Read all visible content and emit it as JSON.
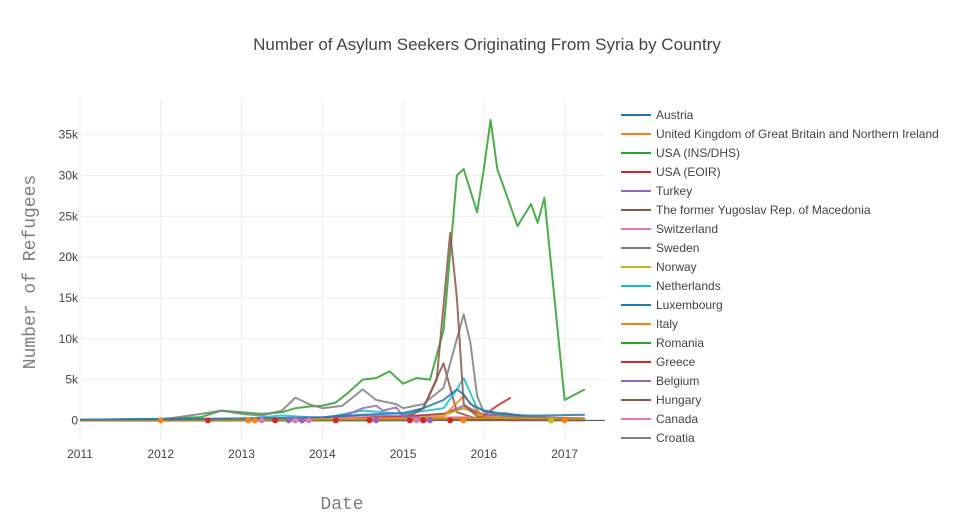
{
  "chart_data": {
    "type": "line",
    "title": "Number of Asylum Seekers Originating From Syria by Country",
    "xlabel": "Date",
    "ylabel": "Number of Refugees",
    "x_ticks": [
      "2011",
      "2012",
      "2013",
      "2014",
      "2015",
      "2016",
      "2017"
    ],
    "y_ticks": [
      {
        "value": 0,
        "label": "0"
      },
      {
        "value": 5000,
        "label": "5k"
      },
      {
        "value": 10000,
        "label": "10k"
      },
      {
        "value": 15000,
        "label": "15k"
      },
      {
        "value": 20000,
        "label": "20k"
      },
      {
        "value": 25000,
        "label": "25k"
      },
      {
        "value": 30000,
        "label": "30k"
      },
      {
        "value": 35000,
        "label": "35k"
      }
    ],
    "xlim": [
      "2011-01-01",
      "2017-07-01"
    ],
    "ylim": [
      -2400,
      39500
    ],
    "grid": true,
    "legend_position": "right",
    "series": [
      {
        "name": "Austria",
        "color": "#1f77b4",
        "x": [
          "2011-01",
          "2011-07",
          "2012-01",
          "2012-07",
          "2013-01",
          "2013-07",
          "2014-01",
          "2014-07",
          "2015-01",
          "2015-04",
          "2015-07",
          "2015-09",
          "2015-10",
          "2015-11",
          "2016-01",
          "2016-04",
          "2016-07",
          "2016-10",
          "2017-01",
          "2017-04"
        ],
        "y": [
          100,
          120,
          150,
          200,
          250,
          300,
          400,
          700,
          900,
          1500,
          2500,
          3800,
          3200,
          2000,
          1200,
          800,
          600,
          600,
          650,
          700
        ]
      },
      {
        "name": "United Kingdom of Great Britain and Northern Ireland",
        "color": "#ff7f0e",
        "x": [
          "2011-01",
          "2012-01",
          "2013-01",
          "2014-01",
          "2015-01",
          "2015-07",
          "2016-01",
          "2016-07",
          "2017-01",
          "2017-04"
        ],
        "y": [
          20,
          60,
          100,
          150,
          200,
          250,
          280,
          250,
          220,
          200
        ]
      },
      {
        "name": "USA (INS/DHS)",
        "color": "#2ca02c",
        "x": [
          "2011-01",
          "2012-01",
          "2013-01",
          "2014-01",
          "2015-01",
          "2016-01",
          "2017-01",
          "2017-04"
        ],
        "y": [
          10,
          20,
          30,
          50,
          100,
          200,
          150,
          120
        ]
      },
      {
        "name": "USA (EOIR)",
        "color": "#d62728",
        "x": [
          "2011-01",
          "2012-01",
          "2013-01",
          "2014-01",
          "2015-01",
          "2016-01",
          "2017-01",
          "2017-04"
        ],
        "y": [
          5,
          10,
          20,
          30,
          60,
          100,
          80,
          70
        ]
      },
      {
        "name": "Turkey",
        "color": "#9467bd",
        "x": [
          "2014-01",
          "2014-05",
          "2014-07",
          "2014-09",
          "2014-10",
          "2014-12",
          "2015-01",
          "2015-04",
          "2015-07",
          "2015-10",
          "2016-01",
          "2016-07",
          "2017-01",
          "2017-04"
        ],
        "y": [
          200,
          800,
          1500,
          1800,
          1200,
          1600,
          500,
          300,
          200,
          300,
          250,
          200,
          200,
          150
        ]
      },
      {
        "name": "The former Yugoslav Rep. of Macedonia",
        "color": "#8c564b",
        "x": [
          "2015-01",
          "2015-04",
          "2015-06",
          "2015-08",
          "2015-09",
          "2015-10",
          "2015-12",
          "2016-03",
          "2016-06"
        ],
        "y": [
          100,
          1500,
          5000,
          23000,
          15000,
          2000,
          500,
          100,
          0
        ]
      },
      {
        "name": "Switzerland",
        "color": "#e377c2",
        "x": [
          "2011-01",
          "2012-01",
          "2013-01",
          "2014-01",
          "2015-01",
          "2015-10",
          "2016-01",
          "2016-07",
          "2017-01",
          "2017-04"
        ],
        "y": [
          50,
          70,
          100,
          200,
          250,
          400,
          300,
          200,
          150,
          120
        ]
      },
      {
        "name": "Sweden",
        "color": "#7f7f7f",
        "x": [
          "2011-01",
          "2012-01",
          "2012-07",
          "2012-10",
          "2013-01",
          "2013-04",
          "2013-07",
          "2013-09",
          "2013-11",
          "2014-01",
          "2014-04",
          "2014-07",
          "2014-09",
          "2014-12",
          "2015-01",
          "2015-04",
          "2015-07",
          "2015-09",
          "2015-10",
          "2015-11",
          "2015-12",
          "2016-01",
          "2016-04",
          "2016-07",
          "2017-01",
          "2017-04"
        ],
        "y": [
          50,
          100,
          800,
          1200,
          800,
          600,
          1200,
          2800,
          2000,
          1500,
          1800,
          3800,
          2500,
          2000,
          1500,
          2000,
          4000,
          10000,
          13000,
          9500,
          3000,
          1000,
          600,
          400,
          300,
          250
        ]
      },
      {
        "name": "Norway",
        "color": "#bcbd22",
        "x": [
          "2011-01",
          "2012-01",
          "2013-01",
          "2014-01",
          "2015-01",
          "2015-07",
          "2015-10",
          "2016-01",
          "2016-07",
          "2017-01",
          "2017-04"
        ],
        "y": [
          30,
          50,
          80,
          150,
          250,
          600,
          1500,
          400,
          200,
          150,
          120
        ]
      },
      {
        "name": "Netherlands",
        "color": "#17becf",
        "x": [
          "2011-01",
          "2012-01",
          "2013-01",
          "2013-07",
          "2014-01",
          "2014-07",
          "2015-01",
          "2015-07",
          "2015-09",
          "2015-10",
          "2015-12",
          "2016-04",
          "2016-07",
          "2017-01",
          "2017-04"
        ],
        "y": [
          50,
          80,
          150,
          600,
          300,
          1200,
          800,
          1500,
          3800,
          5200,
          1500,
          500,
          300,
          250,
          200
        ]
      },
      {
        "name": "Luxembourg",
        "color": "#1f77b4",
        "x": [
          "2011-01",
          "2013-01",
          "2015-01",
          "2015-10",
          "2016-04",
          "2017-01",
          "2017-04"
        ],
        "y": [
          5,
          10,
          20,
          80,
          50,
          30,
          25
        ]
      },
      {
        "name": "Italy",
        "color": "#ff7f0e",
        "x": [
          "2011-01",
          "2011-07",
          "2012-01",
          "2012-07",
          "2013-01",
          "2013-04",
          "2014-01",
          "2015-01",
          "2015-07",
          "2015-10",
          "2016-01",
          "2016-07",
          "2017-01",
          "2017-04"
        ],
        "y": [
          30,
          50,
          100,
          150,
          150,
          200,
          200,
          300,
          500,
          3000,
          400,
          300,
          200,
          150
        ]
      },
      {
        "name": "Romania",
        "color": "#2ca02c",
        "x": [
          "2011-01",
          "2011-07",
          "2012-01",
          "2012-07",
          "2012-10",
          "2013-01",
          "2013-04",
          "2013-07",
          "2013-09",
          "2013-11",
          "2014-01",
          "2014-03",
          "2014-05",
          "2014-07",
          "2014-09",
          "2014-11",
          "2015-01",
          "2015-03",
          "2015-05",
          "2015-07",
          "2015-09",
          "2015-10",
          "2015-12",
          "2016-01",
          "2016-02",
          "2016-03",
          "2016-04",
          "2016-06",
          "2016-08",
          "2016-09",
          "2016-10",
          "2017-01",
          "2017-04"
        ],
        "y": [
          50,
          150,
          200,
          400,
          1200,
          1000,
          800,
          1000,
          1500,
          1700,
          1800,
          2200,
          3500,
          5000,
          5200,
          6000,
          4500,
          5200,
          5000,
          11000,
          30000,
          30800,
          25500,
          30800,
          36800,
          30800,
          28500,
          23800,
          26500,
          24200,
          27300,
          2500,
          3800
        ]
      },
      {
        "name": "Greece",
        "color": "#d62728",
        "x": [
          "2011-01",
          "2012-01",
          "2013-01",
          "2014-01",
          "2014-07",
          "2015-01",
          "2015-07",
          "2015-10",
          "2016-01",
          "2016-03",
          "2016-05"
        ],
        "y": [
          20,
          50,
          80,
          150,
          300,
          400,
          800,
          1500,
          600,
          1800,
          2800
        ]
      },
      {
        "name": "Belgium",
        "color": "#9467bd",
        "x": [
          "2011-01",
          "2012-01",
          "2013-01",
          "2014-01",
          "2014-07",
          "2015-01",
          "2015-07",
          "2015-10",
          "2016-01",
          "2016-07",
          "2017-01",
          "2017-04"
        ],
        "y": [
          40,
          80,
          150,
          300,
          600,
          500,
          800,
          1800,
          700,
          400,
          300,
          250
        ]
      },
      {
        "name": "Hungary",
        "color": "#8c564b",
        "x": [
          "2011-01",
          "2012-01",
          "2013-01",
          "2014-01",
          "2014-07",
          "2015-01",
          "2015-04",
          "2015-07",
          "2015-09",
          "2015-12",
          "2016-04",
          "2016-07",
          "2017-01",
          "2017-04"
        ],
        "y": [
          10,
          30,
          60,
          100,
          300,
          500,
          1500,
          7000,
          1000,
          200,
          900,
          500,
          100,
          50
        ]
      },
      {
        "name": "Canada",
        "color": "#e377c2",
        "x": [
          "2011-01",
          "2012-01",
          "2013-01",
          "2014-01",
          "2015-01",
          "2016-01",
          "2017-01",
          "2017-04"
        ],
        "y": [
          20,
          40,
          60,
          100,
          150,
          300,
          200,
          150
        ]
      },
      {
        "name": "Croatia",
        "color": "#7f7f7f",
        "x": [
          "2011-01",
          "2013-01",
          "2015-01",
          "2015-09",
          "2015-11",
          "2016-01",
          "2016-07",
          "2017-01",
          "2017-04"
        ],
        "y": [
          2,
          5,
          10,
          60,
          30,
          20,
          10,
          8,
          5
        ]
      }
    ],
    "markers": [
      {
        "color": "#d62728",
        "points": [
          [
            "2012-08",
            0
          ],
          [
            "2013-06",
            0
          ],
          [
            "2013-10",
            0
          ],
          [
            "2014-03",
            0
          ],
          [
            "2014-08",
            0
          ],
          [
            "2015-02",
            0
          ],
          [
            "2015-04",
            0
          ],
          [
            "2015-08",
            0
          ]
        ]
      },
      {
        "color": "#e377c2",
        "points": [
          [
            "2013-04",
            0
          ],
          [
            "2013-09",
            0
          ],
          [
            "2013-11",
            0
          ],
          [
            "2015-03",
            0
          ]
        ]
      },
      {
        "color": "#ff7f0e",
        "points": [
          [
            "2012-01",
            0
          ],
          [
            "2013-02",
            0
          ],
          [
            "2013-03",
            0
          ],
          [
            "2015-10",
            0
          ],
          [
            "2017-01",
            0
          ]
        ]
      },
      {
        "color": "#9467bd",
        "points": [
          [
            "2013-08",
            0
          ],
          [
            "2013-10",
            0
          ],
          [
            "2014-09",
            0
          ],
          [
            "2015-05",
            0
          ]
        ]
      },
      {
        "color": "#bcbd22",
        "points": [
          [
            "2016-11",
            0
          ]
        ]
      }
    ]
  }
}
